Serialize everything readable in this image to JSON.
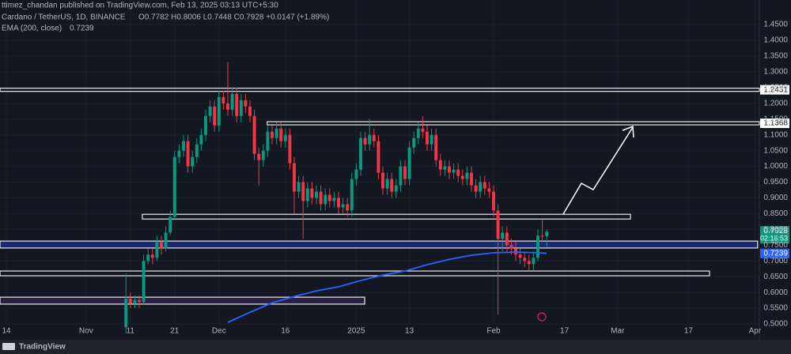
{
  "header": {
    "publisher": "ttimez_chandan published on TradingView.com, Feb 13, 2025 03:13 UTC+5:30",
    "symbol": "Cardano / TetherUS, 1D, BINANCE",
    "quote": "O0.7782 H0.8006 L0.7448 C0.7928 +0.0147 (+1.89%)"
  },
  "footer": {
    "brand": "TradingView"
  },
  "chart_data": {
    "type": "candlestick",
    "up_color": "#089981",
    "down_color": "#f23645",
    "grid": true,
    "xlim": [
      -1.43,
      170
    ],
    "ylim": [
      0.5,
      1.528
    ],
    "xticks": [
      {
        "value": 0,
        "label": "14"
      },
      {
        "value": 18,
        "label": "Nov"
      },
      {
        "value": 28,
        "label": "11"
      },
      {
        "value": 38,
        "label": "21"
      },
      {
        "value": 48,
        "label": "Dec"
      },
      {
        "value": 63,
        "label": "16"
      },
      {
        "value": 79,
        "label": "2025"
      },
      {
        "value": 91,
        "label": "13"
      },
      {
        "value": 110,
        "label": "Feb"
      },
      {
        "value": 126,
        "label": "17"
      },
      {
        "value": 138,
        "label": "Mar"
      },
      {
        "value": 154,
        "label": "17"
      },
      {
        "value": 169,
        "label": "Apr"
      }
    ],
    "yticks": [
      {
        "value": 0.5,
        "label": "0.5000"
      },
      {
        "value": 0.55,
        "label": "0.5500"
      },
      {
        "value": 0.6,
        "label": "0.6000"
      },
      {
        "value": 0.65,
        "label": "0.6500"
      },
      {
        "value": 0.7,
        "label": "0.7000"
      },
      {
        "value": 0.75,
        "label": "0.7500"
      },
      {
        "value": 0.8,
        "label": "0.8000"
      },
      {
        "value": 0.85,
        "label": "0.8500"
      },
      {
        "value": 0.9,
        "label": "0.9000"
      },
      {
        "value": 0.95,
        "label": "0.9500"
      },
      {
        "value": 1.0,
        "label": "1.0000"
      },
      {
        "value": 1.05,
        "label": "1.0500"
      },
      {
        "value": 1.1,
        "label": "1.1000"
      },
      {
        "value": 1.15,
        "label": "1.1500"
      },
      {
        "value": 1.2,
        "label": "1.2000"
      },
      {
        "value": 1.25,
        "label": "1.2500"
      },
      {
        "value": 1.3,
        "label": "1.3000"
      },
      {
        "value": 1.35,
        "label": "1.3500"
      },
      {
        "value": 1.4,
        "label": "1.4000"
      },
      {
        "value": 1.45,
        "label": "1.4500"
      }
    ],
    "candles": {
      "x": [
        27,
        28,
        29,
        30,
        31,
        32,
        33,
        34,
        35,
        36,
        37,
        38,
        39,
        40,
        41,
        42,
        43,
        44,
        45,
        46,
        47,
        48,
        49,
        50,
        51,
        52,
        53,
        54,
        55,
        56,
        57,
        58,
        59,
        60,
        61,
        62,
        63,
        64,
        65,
        66,
        67,
        68,
        69,
        70,
        71,
        72,
        73,
        74,
        75,
        76,
        77,
        78,
        79,
        80,
        81,
        82,
        83,
        84,
        85,
        86,
        87,
        88,
        89,
        90,
        91,
        92,
        93,
        94,
        95,
        96,
        97,
        98,
        99,
        100,
        101,
        102,
        103,
        104,
        105,
        106,
        107,
        108,
        109,
        110,
        111,
        112,
        113,
        114,
        115,
        116,
        117,
        118,
        119,
        120,
        121,
        122
      ],
      "open": [
        0.49,
        0.58,
        0.565,
        0.575,
        0.57,
        0.7,
        0.72,
        0.71,
        0.76,
        0.74,
        0.79,
        0.84,
        1.03,
        1.05,
        1.08,
        1.0,
        1.03,
        1.07,
        1.1,
        1.16,
        1.19,
        1.13,
        1.22,
        1.2,
        1.18,
        1.23,
        1.16,
        1.21,
        1.19,
        1.16,
        1.04,
        1.02,
        1.05,
        1.11,
        1.09,
        1.12,
        1.08,
        1.1,
        1.01,
        0.92,
        0.95,
        0.89,
        0.93,
        0.9,
        0.92,
        0.88,
        0.91,
        0.89,
        0.9,
        0.87,
        0.88,
        0.86,
        0.96,
        0.99,
        1.09,
        1.07,
        1.1,
        1.08,
        0.98,
        0.93,
        0.96,
        0.92,
        0.94,
        1.0,
        0.96,
        1.06,
        1.09,
        1.12,
        1.11,
        1.07,
        1.1,
        1.02,
        0.99,
        1.0,
        0.98,
        0.99,
        0.97,
        0.96,
        0.98,
        0.94,
        0.92,
        0.95,
        0.93,
        0.92,
        0.86,
        0.77,
        0.79,
        0.75,
        0.74,
        0.72,
        0.71,
        0.7,
        0.69,
        0.71,
        0.78,
        0.7782
      ],
      "high": [
        0.66,
        0.6,
        0.59,
        0.59,
        0.72,
        0.74,
        0.74,
        0.78,
        0.78,
        0.81,
        0.86,
        1.05,
        1.07,
        1.1,
        1.1,
        1.05,
        1.09,
        1.12,
        1.18,
        1.21,
        1.21,
        1.24,
        1.24,
        1.33,
        1.25,
        1.25,
        1.23,
        1.23,
        1.21,
        1.18,
        1.06,
        1.07,
        1.13,
        1.13,
        1.14,
        1.14,
        1.12,
        1.12,
        1.03,
        0.97,
        0.97,
        0.95,
        0.95,
        0.94,
        0.94,
        0.93,
        0.93,
        0.92,
        0.92,
        0.9,
        0.9,
        0.98,
        1.01,
        1.11,
        1.11,
        1.15,
        1.12,
        1.1,
        1.0,
        0.98,
        0.98,
        0.96,
        1.02,
        1.02,
        1.08,
        1.11,
        1.14,
        1.16,
        1.13,
        1.12,
        1.12,
        1.04,
        1.02,
        1.02,
        1.01,
        1.01,
        0.99,
        1.0,
        1.0,
        0.96,
        0.97,
        0.97,
        0.95,
        0.94,
        0.88,
        0.81,
        0.81,
        0.77,
        0.76,
        0.74,
        0.73,
        0.72,
        0.73,
        0.8,
        0.83,
        0.8006
      ],
      "low": [
        0.47,
        0.55,
        0.55,
        0.55,
        0.56,
        0.69,
        0.69,
        0.7,
        0.72,
        0.73,
        0.78,
        0.83,
        1.01,
        1.03,
        0.98,
        0.98,
        1.01,
        1.05,
        1.08,
        1.14,
        1.11,
        1.11,
        1.18,
        1.16,
        1.16,
        1.14,
        1.14,
        1.17,
        1.14,
        1.02,
        0.94,
        1.0,
        1.03,
        1.07,
        1.07,
        1.06,
        1.06,
        0.99,
        0.85,
        0.9,
        0.77,
        0.87,
        0.88,
        0.88,
        0.86,
        0.86,
        0.87,
        0.87,
        0.85,
        0.85,
        0.84,
        0.84,
        0.94,
        0.97,
        1.05,
        1.05,
        1.06,
        0.96,
        0.91,
        0.91,
        0.9,
        0.9,
        0.92,
        0.94,
        0.94,
        1.04,
        1.07,
        1.09,
        1.05,
        1.05,
        1.0,
        0.97,
        0.97,
        0.96,
        0.96,
        0.95,
        0.94,
        0.94,
        0.92,
        0.9,
        0.9,
        0.91,
        0.9,
        0.84,
        0.53,
        0.73,
        0.73,
        0.72,
        0.7,
        0.69,
        0.68,
        0.67,
        0.67,
        0.7,
        0.76,
        0.7448
      ],
      "close": [
        0.58,
        0.565,
        0.575,
        0.57,
        0.7,
        0.72,
        0.71,
        0.76,
        0.74,
        0.79,
        0.84,
        1.03,
        1.05,
        1.08,
        1.0,
        1.03,
        1.07,
        1.1,
        1.16,
        1.19,
        1.13,
        1.22,
        1.2,
        1.18,
        1.23,
        1.16,
        1.21,
        1.19,
        1.16,
        1.04,
        1.02,
        1.05,
        1.11,
        1.09,
        1.12,
        1.08,
        1.1,
        1.01,
        0.92,
        0.95,
        0.89,
        0.93,
        0.9,
        0.92,
        0.88,
        0.91,
        0.89,
        0.9,
        0.87,
        0.88,
        0.86,
        0.96,
        0.99,
        1.09,
        1.07,
        1.1,
        1.08,
        0.98,
        0.93,
        0.96,
        0.92,
        0.94,
        1.0,
        0.96,
        1.06,
        1.09,
        1.12,
        1.11,
        1.07,
        1.1,
        1.02,
        0.99,
        1.0,
        0.98,
        0.99,
        0.97,
        0.96,
        0.98,
        0.94,
        0.92,
        0.95,
        0.93,
        0.92,
        0.86,
        0.77,
        0.79,
        0.75,
        0.74,
        0.72,
        0.71,
        0.7,
        0.69,
        0.71,
        0.78,
        0.7781,
        0.7928
      ]
    },
    "last_price_color": "#089981",
    "countdown": "02:16:53",
    "ema": {
      "name": "EMA (200, close)",
      "color": "#2962ff",
      "x": [
        50,
        55,
        60,
        65,
        70,
        75,
        80,
        85,
        90,
        95,
        100,
        105,
        110,
        115,
        120,
        122
      ],
      "values": [
        0.505,
        0.537,
        0.567,
        0.587,
        0.605,
        0.618,
        0.638,
        0.655,
        0.668,
        0.688,
        0.705,
        0.718,
        0.726,
        0.728,
        0.726,
        0.7239
      ]
    },
    "levels": [
      {
        "value": 1.2431,
        "start": -1.43,
        "end": 170
      },
      {
        "value": 1.1368,
        "start": 58.9,
        "end": 170
      }
    ],
    "zones": [
      {
        "low": 0.833,
        "high": 0.848,
        "start": 30.7,
        "end": 140.9
      },
      {
        "low": 0.741,
        "high": 0.763,
        "start": -1.43,
        "end": 169.6,
        "fill": "#1c2a6b"
      },
      {
        "low": 0.653,
        "high": 0.668,
        "start": -1.43,
        "end": 158.75
      },
      {
        "low": 0.563,
        "high": 0.585,
        "start": -1.43,
        "end": 80.9,
        "fill": "#2a2145"
      }
    ]
  }
}
